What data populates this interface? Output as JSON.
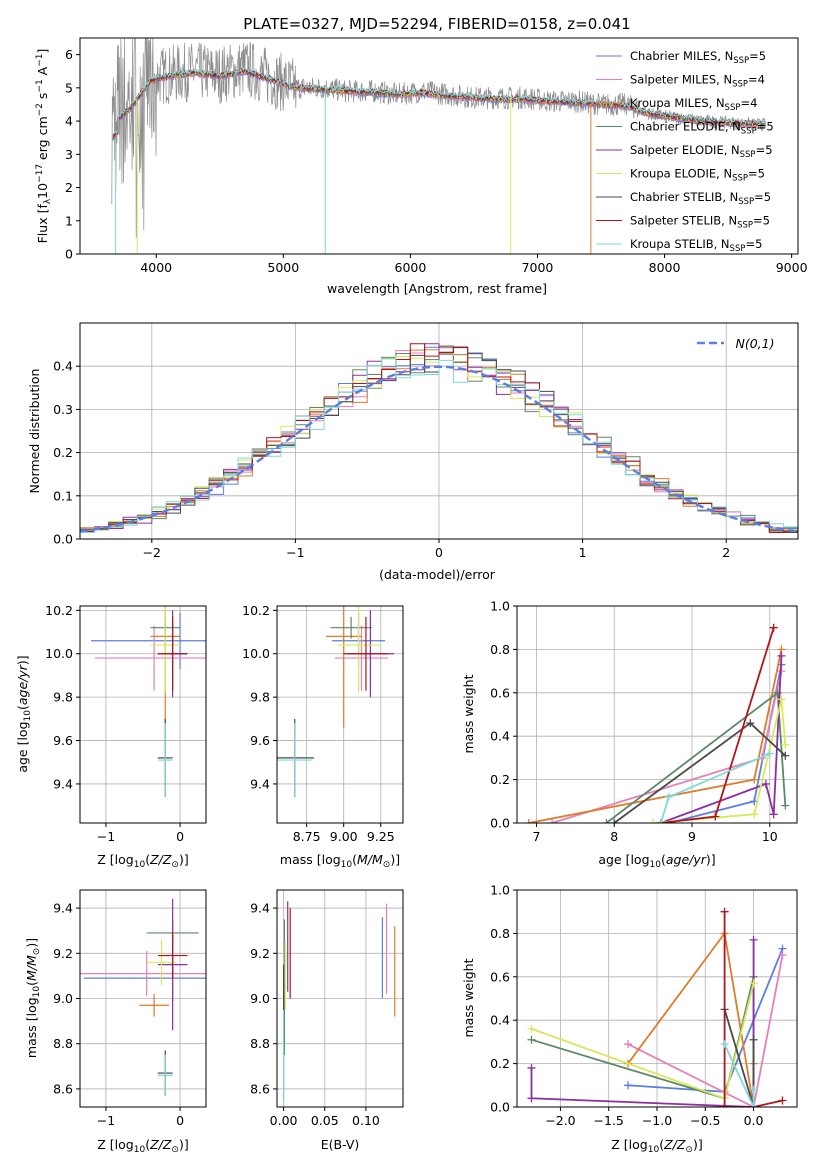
{
  "figure": {
    "title": "PLATE=0327, MJD=52294, FIBERID=0158, z=0.041"
  },
  "colors": {
    "Chabrier MILES": "#5b7fe0",
    "Salpeter MILES": "#e87fb8",
    "Kroupa MILES": "#e07b2a",
    "Chabrier ELODIE": "#5a8a64",
    "Salpeter ELODIE": "#8d2fa0",
    "Kroupa ELODIE": "#d7e85a",
    "Chabrier STELIB": "#4a4a4a",
    "Salpeter STELIB": "#b0141c",
    "Kroupa STELIB": "#7fd8dc",
    "data": "#8c8c8c"
  },
  "chart_data": [
    {
      "id": "spectrum",
      "type": "line",
      "title": "PLATE=0327, MJD=52294, FIBERID=0158, z=0.041",
      "xlabel": "wavelength [Angstrom, rest frame]",
      "ylabel": "Flux [f_λ 10^-17 erg cm^-2 s^-1 A^-1]",
      "xlim": [
        3400,
        9050
      ],
      "ylim": [
        0,
        6.5
      ],
      "xticks": [
        4000,
        5000,
        6000,
        7000,
        8000,
        9000
      ],
      "yticks": [
        0,
        1,
        2,
        3,
        4,
        5,
        6
      ],
      "legend_position": "top-right",
      "legend": [
        {
          "label": "Chabrier MILES, N",
          "sub": "SSP",
          "suffix": "=5"
        },
        {
          "label": "Salpeter MILES, N",
          "sub": "SSP",
          "suffix": "=4"
        },
        {
          "label": "Kroupa MILES, N",
          "sub": "SSP",
          "suffix": "=4"
        },
        {
          "label": "Chabrier ELODIE, N",
          "sub": "SSP",
          "suffix": "=5"
        },
        {
          "label": "Salpeter ELODIE, N",
          "sub": "SSP",
          "suffix": "=5"
        },
        {
          "label": "Kroupa ELODIE, N",
          "sub": "SSP",
          "suffix": "=5"
        },
        {
          "label": "Chabrier STELIB, N",
          "sub": "SSP",
          "suffix": "=5"
        },
        {
          "label": "Salpeter STELIB, N",
          "sub": "SSP",
          "suffix": "=5"
        },
        {
          "label": "Kroupa STELIB, N",
          "sub": "SSP",
          "suffix": "=5"
        }
      ],
      "data_continuum": [
        [
          3650,
          4.0
        ],
        [
          3800,
          4.6
        ],
        [
          3950,
          5.3
        ],
        [
          4100,
          5.4
        ],
        [
          4300,
          5.5
        ],
        [
          4500,
          5.4
        ],
        [
          4700,
          5.6
        ],
        [
          4900,
          5.3
        ],
        [
          5100,
          5.0
        ],
        [
          5300,
          5.0
        ],
        [
          5500,
          4.9
        ],
        [
          5700,
          4.9
        ],
        [
          5900,
          4.8
        ],
        [
          6100,
          4.9
        ],
        [
          6300,
          4.8
        ],
        [
          6500,
          4.7
        ],
        [
          6700,
          4.7
        ],
        [
          6900,
          4.7
        ],
        [
          7100,
          4.6
        ],
        [
          7300,
          4.6
        ],
        [
          7500,
          4.5
        ],
        [
          7700,
          4.5
        ],
        [
          7900,
          4.2
        ],
        [
          8100,
          4.1
        ],
        [
          8300,
          4.0
        ],
        [
          8500,
          3.95
        ],
        [
          8700,
          3.9
        ],
        [
          8800,
          3.9
        ]
      ],
      "model_continuum": [
        [
          3650,
          3.9
        ],
        [
          3800,
          4.4
        ],
        [
          3950,
          5.2
        ],
        [
          4100,
          5.35
        ],
        [
          4300,
          5.45
        ],
        [
          4500,
          5.35
        ],
        [
          4700,
          5.5
        ],
        [
          4900,
          5.25
        ],
        [
          5100,
          5.0
        ],
        [
          5300,
          4.95
        ],
        [
          5500,
          4.9
        ],
        [
          5700,
          4.85
        ],
        [
          5900,
          4.8
        ],
        [
          6100,
          4.85
        ],
        [
          6300,
          4.75
        ],
        [
          6500,
          4.7
        ],
        [
          6700,
          4.65
        ],
        [
          6900,
          4.65
        ],
        [
          7100,
          4.6
        ],
        [
          7300,
          4.55
        ],
        [
          7500,
          4.5
        ],
        [
          7700,
          4.45
        ],
        [
          7900,
          4.2
        ],
        [
          8100,
          4.1
        ],
        [
          8300,
          4.0
        ],
        [
          8500,
          3.95
        ],
        [
          8700,
          3.9
        ],
        [
          8800,
          3.9
        ]
      ]
    },
    {
      "id": "residuals",
      "type": "line",
      "xlabel": "(data-model)/error",
      "ylabel": "Normed distribution",
      "xlim": [
        -2.5,
        2.5
      ],
      "ylim": [
        0,
        0.5
      ],
      "xticks": [
        -2,
        -1,
        0,
        1,
        2
      ],
      "yticks": [
        0.0,
        0.1,
        0.2,
        0.3,
        0.4
      ],
      "grid": true,
      "legend_position": "top-right",
      "reference_curve": "N(0,1)",
      "bin_width": 0.1
    },
    {
      "id": "age-vs-Z",
      "type": "scatter",
      "xlabel": "Z [log10(Z/Z⊙)]",
      "ylabel": "age  [log10(age/yr)]",
      "xlim": [
        -1.35,
        0.35
      ],
      "ylim": [
        9.22,
        10.22
      ],
      "xticks": [
        -1,
        0
      ],
      "yticks": [
        9.4,
        9.6,
        9.8,
        10.0,
        10.2
      ],
      "grid": true,
      "points": [
        {
          "s": "Chabrier MILES",
          "x": 0.0,
          "xerr": 1.2,
          "y": 10.06,
          "yerr": 0.13
        },
        {
          "s": "Salpeter MILES",
          "x": -0.35,
          "xerr": 0.8,
          "y": 9.98,
          "yerr": 0.15
        },
        {
          "s": "Kroupa MILES",
          "x": -0.2,
          "xerr": 0.2,
          "y": 10.08,
          "yerr": 0.42
        },
        {
          "s": "Chabrier ELODIE",
          "x": -0.2,
          "xerr": 0.2,
          "y": 10.12,
          "yerr": 0.05
        },
        {
          "s": "Salpeter ELODIE",
          "x": -0.1,
          "xerr": 0.2,
          "y": 10.0,
          "yerr": 0.2
        },
        {
          "s": "Kroupa ELODIE",
          "x": -0.2,
          "xerr": 0.2,
          "y": 10.04,
          "yerr": 0.22
        },
        {
          "s": "Chabrier STELIB",
          "x": -0.2,
          "xerr": 0.1,
          "y": 9.52,
          "yerr": 0.18
        },
        {
          "s": "Salpeter STELIB",
          "x": -0.1,
          "xerr": 0.2,
          "y": 10.0,
          "yerr": 0.17
        },
        {
          "s": "Kroupa STELIB",
          "x": -0.2,
          "xerr": 0.1,
          "y": 9.51,
          "yerr": 0.17
        }
      ]
    },
    {
      "id": "age-vs-mass",
      "type": "scatter",
      "xlabel": "mass [log10(M/M⊙)]",
      "ylabel": "",
      "xlim": [
        8.55,
        9.4
      ],
      "ylim": [
        9.22,
        10.22
      ],
      "xticks": [
        8.75,
        9.0,
        9.25
      ],
      "yticks": [
        9.4,
        9.6,
        9.8,
        10.0,
        10.2
      ],
      "grid": true,
      "points": [
        {
          "s": "Chabrier MILES",
          "x": 9.1,
          "xerr": 0.18,
          "y": 10.06,
          "yerr": 0.13
        },
        {
          "s": "Salpeter MILES",
          "x": 9.12,
          "xerr": 0.18,
          "y": 9.98,
          "yerr": 0.15
        },
        {
          "s": "Kroupa MILES",
          "x": 9.0,
          "xerr": 0.12,
          "y": 10.08,
          "yerr": 0.42
        },
        {
          "s": "Chabrier ELODIE",
          "x": 9.05,
          "xerr": 0.14,
          "y": 10.12,
          "yerr": 0.05
        },
        {
          "s": "Salpeter ELODIE",
          "x": 9.18,
          "xerr": 0.16,
          "y": 10.0,
          "yerr": 0.2
        },
        {
          "s": "Kroupa ELODIE",
          "x": 9.1,
          "xerr": 0.14,
          "y": 10.04,
          "yerr": 0.22
        },
        {
          "s": "Chabrier STELIB",
          "x": 8.67,
          "xerr": 0.13,
          "y": 9.52,
          "yerr": 0.18
        },
        {
          "s": "Salpeter STELIB",
          "x": 9.15,
          "xerr": 0.15,
          "y": 10.0,
          "yerr": 0.17
        },
        {
          "s": "Kroupa STELIB",
          "x": 8.67,
          "xerr": 0.12,
          "y": 9.51,
          "yerr": 0.17
        }
      ]
    },
    {
      "id": "weight-vs-age",
      "type": "line",
      "xlabel": "age  [log10(age/yr)]",
      "ylabel": "mass weight",
      "xlim": [
        6.75,
        10.35
      ],
      "ylim": [
        0,
        1.0
      ],
      "xticks": [
        7,
        8,
        9,
        10
      ],
      "yticks": [
        0.0,
        0.2,
        0.4,
        0.6,
        0.8,
        1.0
      ],
      "grid": true,
      "series": [
        {
          "s": "Chabrier MILES",
          "pts": [
            [
              8.7,
              0.0
            ],
            [
              9.8,
              0.1
            ],
            [
              10.15,
              0.73
            ]
          ]
        },
        {
          "s": "Salpeter MILES",
          "pts": [
            [
              7.2,
              0.0
            ],
            [
              9.9,
              0.3
            ],
            [
              10.15,
              0.7
            ]
          ]
        },
        {
          "s": "Kroupa MILES",
          "pts": [
            [
              6.9,
              0.0
            ],
            [
              9.8,
              0.2
            ],
            [
              10.15,
              0.8
            ]
          ]
        },
        {
          "s": "Chabrier ELODIE",
          "pts": [
            [
              7.9,
              0.0
            ],
            [
              10.1,
              0.6
            ],
            [
              10.2,
              0.08
            ]
          ]
        },
        {
          "s": "Salpeter ELODIE",
          "pts": [
            [
              8.6,
              0.0
            ],
            [
              9.95,
              0.18
            ],
            [
              10.05,
              0.04
            ],
            [
              10.15,
              0.77
            ]
          ]
        },
        {
          "s": "Kroupa ELODIE",
          "pts": [
            [
              8.5,
              0.0
            ],
            [
              9.8,
              0.04
            ],
            [
              10.15,
              0.57
            ],
            [
              10.2,
              0.36
            ]
          ]
        },
        {
          "s": "Chabrier STELIB",
          "pts": [
            [
              8.0,
              0.0
            ],
            [
              9.75,
              0.46
            ],
            [
              10.2,
              0.31
            ]
          ]
        },
        {
          "s": "Salpeter STELIB",
          "pts": [
            [
              8.6,
              0.0
            ],
            [
              9.3,
              0.03
            ],
            [
              10.05,
              0.9
            ]
          ]
        },
        {
          "s": "Kroupa STELIB",
          "pts": [
            [
              8.6,
              0.0
            ],
            [
              8.7,
              0.12
            ],
            [
              10.0,
              0.32
            ]
          ]
        }
      ]
    },
    {
      "id": "mass-vs-Z",
      "type": "scatter",
      "xlabel": "Z [log10(Z/Z⊙)]",
      "ylabel": "mass [log10(M/M⊙)]",
      "xlim": [
        -1.35,
        0.35
      ],
      "ylim": [
        8.52,
        9.48
      ],
      "xticks": [
        -1,
        0
      ],
      "yticks": [
        8.6,
        8.8,
        9.0,
        9.2,
        9.4
      ],
      "grid": true,
      "points": [
        {
          "s": "Chabrier MILES",
          "x": -0.1,
          "xerr": 1.2,
          "y": 9.09,
          "yerr": 0.1
        },
        {
          "s": "Salpeter MILES",
          "x": -0.45,
          "xerr": 0.9,
          "y": 9.11,
          "yerr": 0.1
        },
        {
          "s": "Kroupa MILES",
          "x": -0.35,
          "xerr": 0.2,
          "y": 8.97,
          "yerr": 0.05
        },
        {
          "s": "Chabrier ELODIE",
          "x": -0.1,
          "xerr": 0.35,
          "y": 9.29,
          "yerr": 0.06
        },
        {
          "s": "Salpeter ELODIE",
          "x": -0.1,
          "xerr": 0.2,
          "y": 9.15,
          "yerr": 0.29
        },
        {
          "s": "Kroupa ELODIE",
          "x": -0.25,
          "xerr": 0.2,
          "y": 9.16,
          "yerr": 0.1
        },
        {
          "s": "Chabrier STELIB",
          "x": -0.2,
          "xerr": 0.1,
          "y": 8.67,
          "yerr": 0.1
        },
        {
          "s": "Salpeter STELIB",
          "x": -0.1,
          "xerr": 0.2,
          "y": 9.19,
          "yerr": 0.1
        },
        {
          "s": "Kroupa STELIB",
          "x": -0.2,
          "xerr": 0.1,
          "y": 8.66,
          "yerr": 0.09
        }
      ]
    },
    {
      "id": "mass-vs-EBV",
      "type": "scatter",
      "xlabel": "E(B-V)",
      "ylabel": "",
      "xlim": [
        -0.008,
        0.145
      ],
      "ylim": [
        8.52,
        9.48
      ],
      "xticks": [
        0.0,
        0.05,
        0.1
      ],
      "yticks": [
        8.6,
        8.8,
        9.0,
        9.2,
        9.4
      ],
      "grid": true,
      "points": [
        {
          "s": "Chabrier MILES",
          "x": 0.12,
          "yerr": 0.18,
          "y": 9.18
        },
        {
          "s": "Salpeter MILES",
          "x": 0.125,
          "yerr": 0.2,
          "y": 9.22
        },
        {
          "s": "Kroupa MILES",
          "x": 0.135,
          "yerr": 0.2,
          "y": 9.12
        },
        {
          "s": "Chabrier ELODIE",
          "x": 0.001,
          "yerr": 0.3,
          "y": 9.05
        },
        {
          "s": "Salpeter ELODIE",
          "x": 0.005,
          "yerr": 0.2,
          "y": 9.23
        },
        {
          "s": "Kroupa ELODIE",
          "x": 0.002,
          "yerr": 0.15,
          "y": 9.1
        },
        {
          "s": "Chabrier STELIB",
          "x": 0.0,
          "yerr": 0.3,
          "y": 8.85
        },
        {
          "s": "Salpeter STELIB",
          "x": 0.008,
          "yerr": 0.2,
          "y": 9.2
        },
        {
          "s": "Kroupa STELIB",
          "x": 0.0,
          "yerr": 0.2,
          "y": 8.75
        }
      ]
    },
    {
      "id": "weight-vs-Z",
      "type": "line",
      "xlabel": "Z [log10(Z/Z⊙)]",
      "ylabel": "mass weight",
      "xlim": [
        -2.45,
        0.45
      ],
      "ylim": [
        0,
        1.0
      ],
      "xticks": [
        -2.0,
        -1.5,
        -1.0,
        -0.5,
        0.0
      ],
      "yticks": [
        0.0,
        0.2,
        0.4,
        0.6,
        0.8,
        1.0
      ],
      "grid": true,
      "series": [
        {
          "s": "Chabrier MILES",
          "pts": [
            [
              -1.3,
              0.1
            ],
            [
              -0.3,
              0.07
            ],
            [
              0.3,
              0.73
            ]
          ]
        },
        {
          "s": "Salpeter MILES",
          "pts": [
            [
              -1.3,
              0.29
            ],
            [
              0.0,
              0.0
            ],
            [
              0.3,
              0.7
            ]
          ]
        },
        {
          "s": "Kroupa MILES",
          "pts": [
            [
              -1.3,
              0.2
            ],
            [
              -0.3,
              0.8
            ],
            [
              0.0,
              0.0
            ],
            [
              0.0,
              0.2
            ]
          ]
        },
        {
          "s": "Chabrier ELODIE",
          "pts": [
            [
              -2.3,
              0.31
            ],
            [
              -0.3,
              0.04
            ],
            [
              0.0,
              0.6
            ],
            [
              0.0,
              0.08
            ]
          ]
        },
        {
          "s": "Salpeter ELODIE",
          "pts": [
            [
              -2.3,
              0.18
            ],
            [
              -2.3,
              0.04
            ],
            [
              0.0,
              0.0
            ],
            [
              0.0,
              0.77
            ]
          ]
        },
        {
          "s": "Kroupa ELODIE",
          "pts": [
            [
              -2.3,
              0.36
            ],
            [
              -0.3,
              0.04
            ],
            [
              0.0,
              0.57
            ]
          ]
        },
        {
          "s": "Chabrier STELIB",
          "pts": [
            [
              -0.3,
              0.45
            ],
            [
              0.0,
              0.0
            ],
            [
              0.0,
              0.31
            ]
          ]
        },
        {
          "s": "Salpeter STELIB",
          "pts": [
            [
              -0.3,
              0.9
            ],
            [
              -0.3,
              0.0
            ],
            [
              0.0,
              0.0
            ],
            [
              0.3,
              0.03
            ]
          ]
        },
        {
          "s": "Kroupa STELIB",
          "pts": [
            [
              -0.3,
              0.29
            ],
            [
              0.0,
              0.0
            ],
            [
              0.0,
              0.08
            ]
          ]
        }
      ]
    }
  ]
}
